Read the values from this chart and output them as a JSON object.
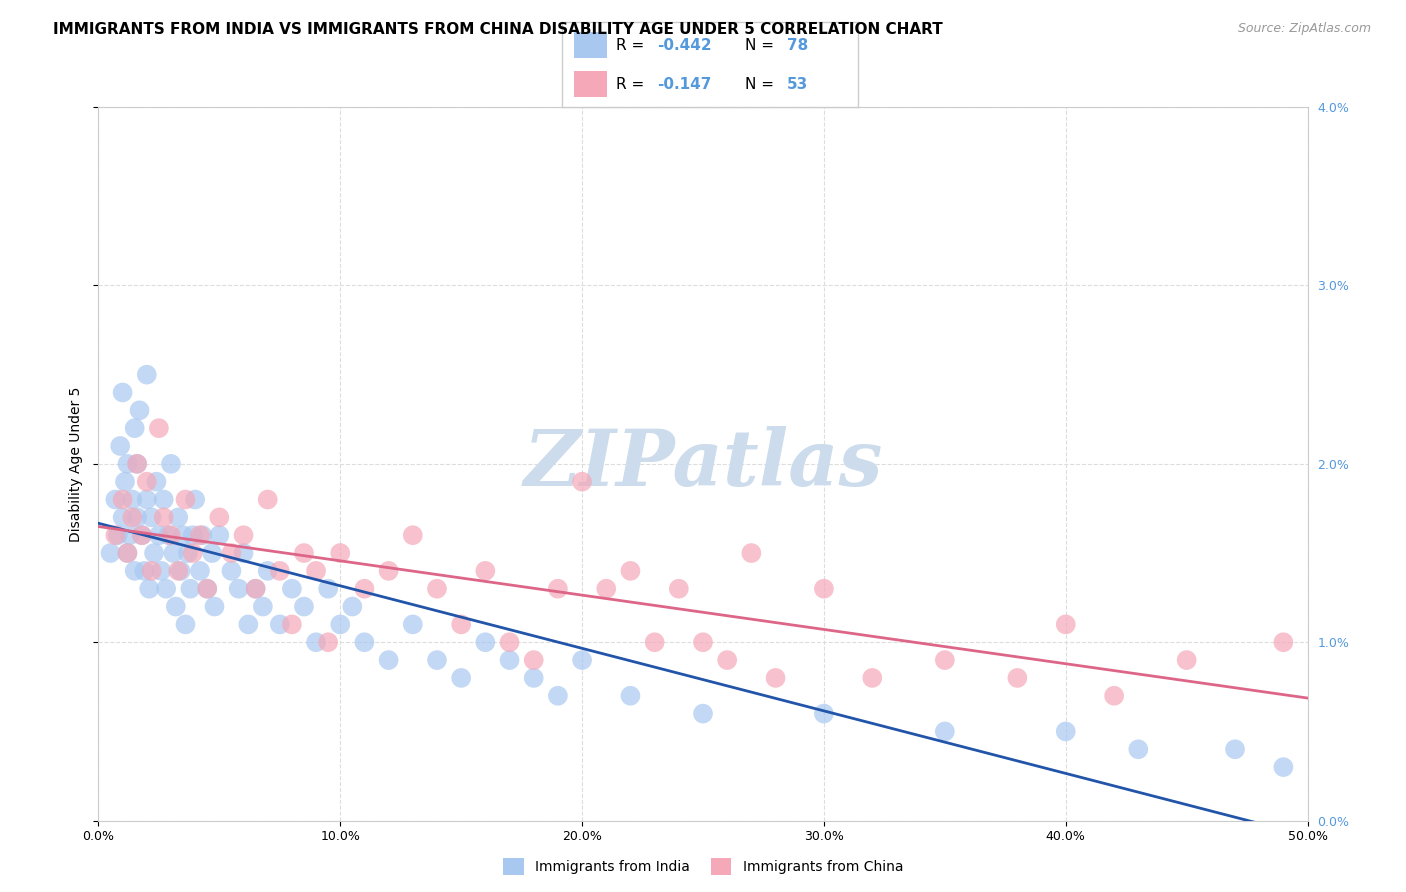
{
  "title": "IMMIGRANTS FROM INDIA VS IMMIGRANTS FROM CHINA DISABILITY AGE UNDER 5 CORRELATION CHART",
  "source": "Source: ZipAtlas.com",
  "xlabel_ticks": [
    "0.0%",
    "10.0%",
    "20.0%",
    "30.0%",
    "40.0%",
    "50.0%"
  ],
  "xlabel_tick_vals": [
    0.0,
    0.1,
    0.2,
    0.3,
    0.4,
    0.5
  ],
  "ylabel_ticks": [
    "0.0%",
    "1.0%",
    "2.0%",
    "3.0%",
    "4.0%"
  ],
  "ylabel_tick_vals": [
    0.0,
    0.01,
    0.02,
    0.03,
    0.04
  ],
  "ylabel": "Disability Age Under 5",
  "xlim": [
    0.0,
    0.5
  ],
  "ylim": [
    0.0,
    0.04
  ],
  "india_color": "#a8c8f0",
  "china_color": "#f4a8b8",
  "india_line_color": "#2255aa",
  "china_line_color": "#dd6688",
  "india_R": -0.442,
  "india_N": 78,
  "china_R": -0.147,
  "china_N": 53,
  "background_color": "#ffffff",
  "grid_color": "#dddddd",
  "title_fontsize": 11,
  "axis_label_fontsize": 10,
  "tick_fontsize": 9,
  "legend_fontsize": 11,
  "watermark_color": "#ccdcec",
  "right_tick_color": "#5599dd",
  "india_x": [
    0.005,
    0.007,
    0.008,
    0.009,
    0.01,
    0.01,
    0.011,
    0.012,
    0.012,
    0.013,
    0.014,
    0.015,
    0.015,
    0.016,
    0.016,
    0.017,
    0.018,
    0.019,
    0.02,
    0.02,
    0.021,
    0.022,
    0.023,
    0.024,
    0.025,
    0.026,
    0.027,
    0.028,
    0.029,
    0.03,
    0.031,
    0.032,
    0.033,
    0.034,
    0.035,
    0.036,
    0.037,
    0.038,
    0.039,
    0.04,
    0.042,
    0.043,
    0.045,
    0.047,
    0.048,
    0.05,
    0.055,
    0.058,
    0.06,
    0.062,
    0.065,
    0.068,
    0.07,
    0.075,
    0.08,
    0.085,
    0.09,
    0.095,
    0.1,
    0.105,
    0.11,
    0.12,
    0.13,
    0.14,
    0.15,
    0.16,
    0.17,
    0.18,
    0.19,
    0.2,
    0.22,
    0.25,
    0.3,
    0.35,
    0.4,
    0.43,
    0.47,
    0.49
  ],
  "india_y": [
    0.015,
    0.018,
    0.016,
    0.021,
    0.017,
    0.024,
    0.019,
    0.015,
    0.02,
    0.016,
    0.018,
    0.022,
    0.014,
    0.017,
    0.02,
    0.023,
    0.016,
    0.014,
    0.018,
    0.025,
    0.013,
    0.017,
    0.015,
    0.019,
    0.016,
    0.014,
    0.018,
    0.013,
    0.016,
    0.02,
    0.015,
    0.012,
    0.017,
    0.014,
    0.016,
    0.011,
    0.015,
    0.013,
    0.016,
    0.018,
    0.014,
    0.016,
    0.013,
    0.015,
    0.012,
    0.016,
    0.014,
    0.013,
    0.015,
    0.011,
    0.013,
    0.012,
    0.014,
    0.011,
    0.013,
    0.012,
    0.01,
    0.013,
    0.011,
    0.012,
    0.01,
    0.009,
    0.011,
    0.009,
    0.008,
    0.01,
    0.009,
    0.008,
    0.007,
    0.009,
    0.007,
    0.006,
    0.006,
    0.005,
    0.005,
    0.004,
    0.004,
    0.003
  ],
  "china_x": [
    0.007,
    0.01,
    0.012,
    0.014,
    0.016,
    0.018,
    0.02,
    0.022,
    0.025,
    0.027,
    0.03,
    0.033,
    0.036,
    0.039,
    0.042,
    0.045,
    0.05,
    0.055,
    0.06,
    0.065,
    0.07,
    0.075,
    0.08,
    0.085,
    0.09,
    0.095,
    0.1,
    0.11,
    0.12,
    0.13,
    0.14,
    0.15,
    0.16,
    0.17,
    0.18,
    0.19,
    0.2,
    0.21,
    0.22,
    0.23,
    0.24,
    0.25,
    0.26,
    0.27,
    0.28,
    0.3,
    0.32,
    0.35,
    0.38,
    0.4,
    0.42,
    0.45,
    0.49
  ],
  "china_y": [
    0.016,
    0.018,
    0.015,
    0.017,
    0.02,
    0.016,
    0.019,
    0.014,
    0.022,
    0.017,
    0.016,
    0.014,
    0.018,
    0.015,
    0.016,
    0.013,
    0.017,
    0.015,
    0.016,
    0.013,
    0.018,
    0.014,
    0.011,
    0.015,
    0.014,
    0.01,
    0.015,
    0.013,
    0.014,
    0.016,
    0.013,
    0.011,
    0.014,
    0.01,
    0.009,
    0.013,
    0.019,
    0.013,
    0.014,
    0.01,
    0.013,
    0.01,
    0.009,
    0.015,
    0.008,
    0.013,
    0.008,
    0.009,
    0.008,
    0.011,
    0.007,
    0.009,
    0.01
  ]
}
